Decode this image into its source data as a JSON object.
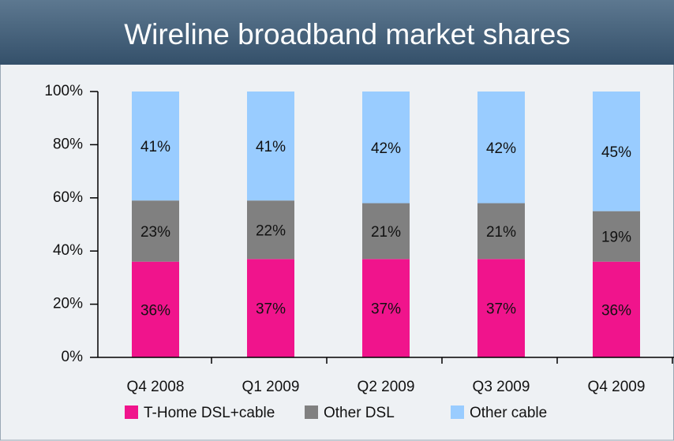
{
  "chart_data": {
    "type": "stacked_bar",
    "title": "Wireline broadband market shares",
    "categories": [
      "Q4 2008",
      "Q1 2009",
      "Q2 2009",
      "Q3 2009",
      "Q4 2009"
    ],
    "series": [
      {
        "name": "T-Home DSL+cable",
        "color": "#f0148c",
        "values": [
          36,
          37,
          37,
          37,
          36
        ],
        "value_labels": [
          "36%",
          "37%",
          "37%",
          "37%",
          "36%"
        ]
      },
      {
        "name": "Other DSL",
        "color": "#808080",
        "values": [
          23,
          22,
          21,
          21,
          19
        ],
        "value_labels": [
          "23%",
          "22%",
          "21%",
          "21%",
          "19%"
        ]
      },
      {
        "name": "Other cable",
        "color": "#99ccff",
        "values": [
          41,
          41,
          42,
          42,
          45
        ],
        "value_labels": [
          "41%",
          "41%",
          "42%",
          "42%",
          "45%"
        ]
      }
    ],
    "ylim": [
      0,
      100
    ],
    "yticks": [
      {
        "value": 0,
        "label": "0%"
      },
      {
        "value": 20,
        "label": "20%"
      },
      {
        "value": 40,
        "label": "40%"
      },
      {
        "value": 60,
        "label": "60%"
      },
      {
        "value": 80,
        "label": "80%"
      },
      {
        "value": 100,
        "label": "100%"
      }
    ]
  }
}
